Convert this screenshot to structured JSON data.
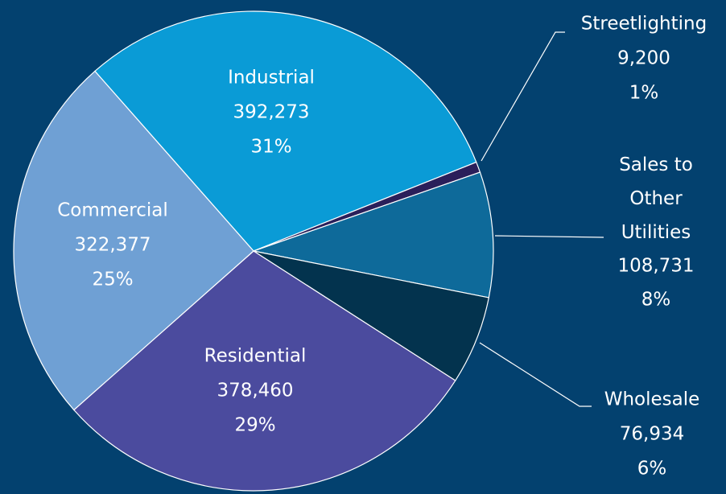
{
  "chart_data": {
    "type": "pie",
    "categories": [
      "Industrial",
      "Streetlighting",
      "Sales to Other Utilities",
      "Wholesale",
      "Residential",
      "Commercial"
    ],
    "values": [
      392273,
      9200,
      108731,
      76934,
      378460,
      322377
    ],
    "value_labels": [
      "392,273",
      "9,200",
      "108,731",
      "76,934",
      "378,460",
      "322,377"
    ],
    "percents": [
      31,
      1,
      8,
      6,
      29,
      25
    ],
    "percent_labels": [
      "31%",
      "1%",
      "8%",
      "6%",
      "29%",
      "25%"
    ],
    "colors": [
      "#0a9bd6",
      "#2a1f5a",
      "#0e6a9a",
      "#03334e",
      "#4b4b9e",
      "#6fa0d4"
    ]
  }
}
